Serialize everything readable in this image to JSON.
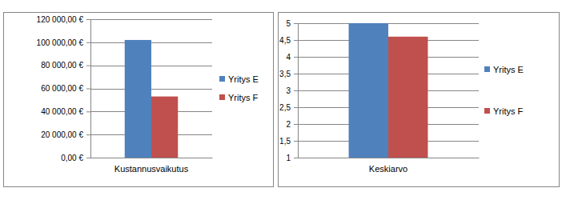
{
  "chart_data": [
    {
      "type": "bar",
      "categories": [
        "Kustannusvaikutus"
      ],
      "series": [
        {
          "name": "Yritys E",
          "color": "#4f81bd",
          "values": [
            102000
          ]
        },
        {
          "name": "Yritys F",
          "color": "#c0504d",
          "values": [
            53000
          ]
        }
      ],
      "ylim": [
        0,
        120000
      ],
      "yticks": [
        {
          "value": 0,
          "label": "0,00 €"
        },
        {
          "value": 20000,
          "label": "20 000,00 €"
        },
        {
          "value": 40000,
          "label": "40 000,00 €"
        },
        {
          "value": 60000,
          "label": "60 000,00 €"
        },
        {
          "value": 80000,
          "label": "80 000,00 €"
        },
        {
          "value": 100000,
          "label": "100 000,00 €"
        },
        {
          "value": 120000,
          "label": "120 000,00 €"
        }
      ],
      "grid": true,
      "legend": "right"
    },
    {
      "type": "bar",
      "categories": [
        "Keskiarvo"
      ],
      "series": [
        {
          "name": "Yritys E",
          "color": "#4f81bd",
          "values": [
            5.0
          ]
        },
        {
          "name": "Yritys F",
          "color": "#c0504d",
          "values": [
            4.6
          ]
        }
      ],
      "ylim": [
        1,
        5
      ],
      "yticks": [
        1,
        {
          "value": 1.5,
          "label": "1,5"
        },
        2,
        {
          "value": 2.5,
          "label": "2,5"
        },
        3,
        {
          "value": 3.5,
          "label": "3,5"
        },
        4,
        {
          "value": 4.5,
          "label": "4,5"
        },
        5
      ],
      "grid": true,
      "legend": "right"
    }
  ]
}
